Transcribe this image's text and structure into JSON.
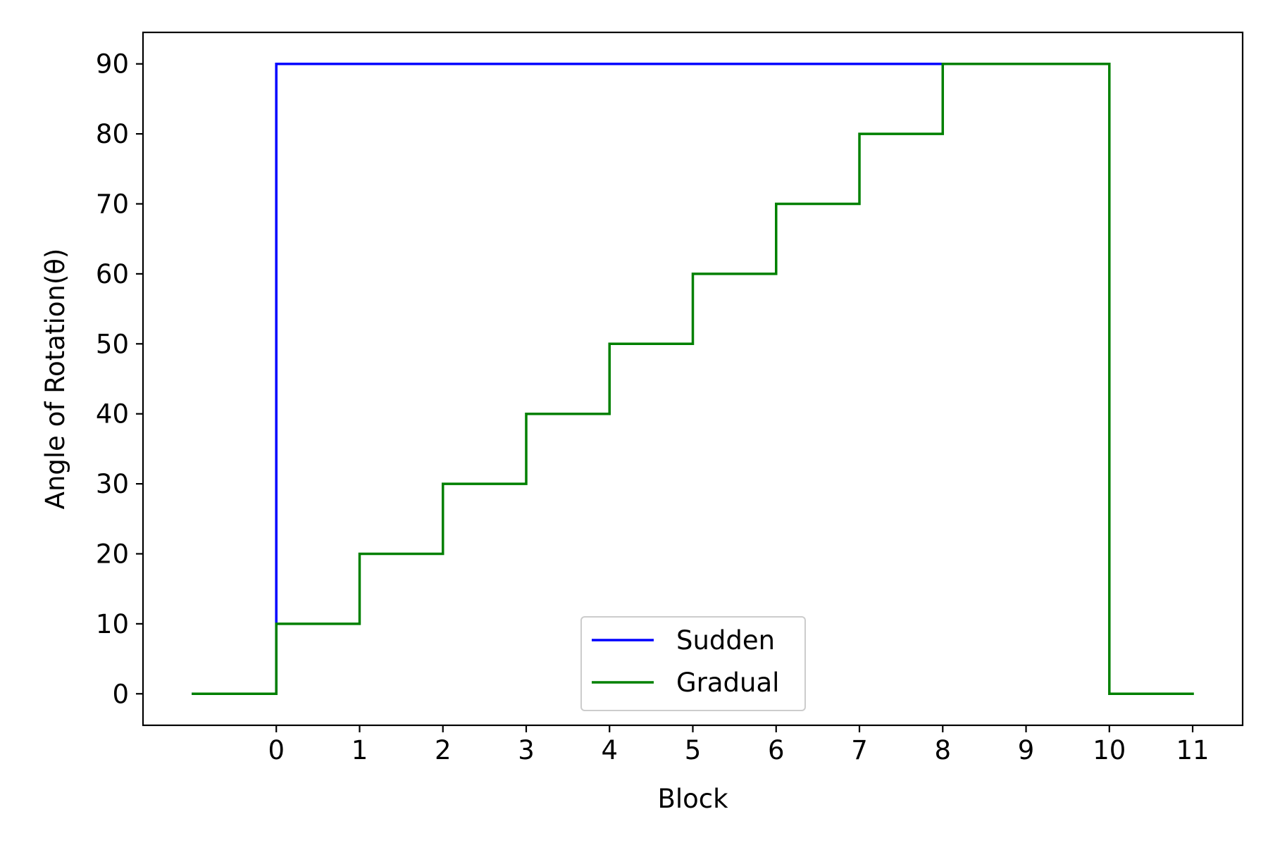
{
  "chart_data": {
    "type": "line",
    "title": "",
    "xlabel": "Block",
    "ylabel": "Angle of Rotation(θ)",
    "xlim": [
      -1.6,
      11.6
    ],
    "ylim": [
      -4.5,
      94.5
    ],
    "xticks": [
      0,
      1,
      2,
      3,
      4,
      5,
      6,
      7,
      8,
      9,
      10,
      11
    ],
    "yticks": [
      0,
      10,
      20,
      30,
      40,
      50,
      60,
      70,
      80,
      90
    ],
    "grid": false,
    "legend_position": "lower center",
    "series": [
      {
        "name": "Sudden",
        "color": "#0000ff",
        "x": [
          -1,
          0,
          0,
          8
        ],
        "y": [
          0,
          0,
          90,
          90
        ]
      },
      {
        "name": "Gradual",
        "color": "#008000",
        "x": [
          -1,
          0,
          0,
          1,
          1,
          2,
          2,
          3,
          3,
          4,
          4,
          5,
          5,
          6,
          6,
          7,
          7,
          8,
          8,
          10,
          10,
          11
        ],
        "y": [
          0,
          0,
          10,
          10,
          20,
          20,
          30,
          30,
          40,
          40,
          50,
          50,
          60,
          60,
          70,
          70,
          80,
          80,
          90,
          90,
          0,
          0
        ]
      }
    ]
  }
}
